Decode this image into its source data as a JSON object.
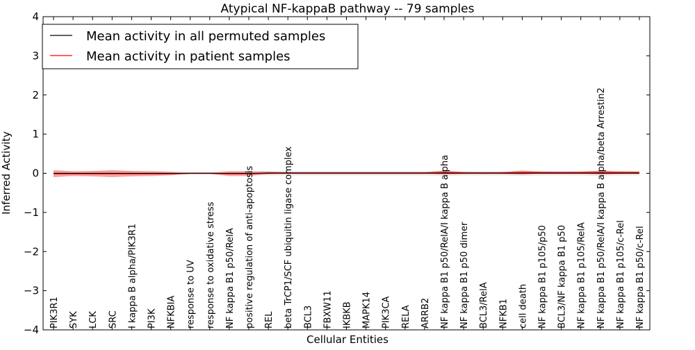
{
  "chart_data": {
    "type": "line",
    "title": "Atypical NF-kappaB pathway -- 79 samples",
    "xlabel": "Cellular Entities",
    "ylabel": "Inferred Activity",
    "ylim": [
      -4,
      4
    ],
    "yticks": [
      -4,
      -3,
      -2,
      -1,
      0,
      1,
      2,
      3,
      4
    ],
    "ytick_labels": [
      "−4",
      "−3",
      "−2",
      "−1",
      "0",
      "1",
      "2",
      "3",
      "4"
    ],
    "grid": false,
    "legend_position": "top-left",
    "categories": [
      "PIK3R1",
      "SYK",
      "LCK",
      "SRC",
      "I kappa B alpha/PIK3R1",
      "PI3K",
      "NFKBIA",
      "response to UV",
      "response to oxidative stress",
      "NF kappa B1 p50/RelA",
      "positive regulation of anti-apoptosis",
      "REL",
      "beta TrCP1/SCF ubiquitin ligase complex",
      "BCL3",
      "FBXW11",
      "IKBKB",
      "MAPK14",
      "PIK3CA",
      "RELA",
      "ARRB2",
      "NF kappa B1 p50/RelA/I kappa B alpha",
      "NF kappa B1 p50 dimer",
      "BCL3/RelA",
      "NFKB1",
      "cell death",
      "NF kappa B1 p105/p50",
      "BCL3/NF kappa B1 p50",
      "NF kappa B1 p105/RelA",
      "NF kappa B1 p50/RelA/I kappa B alpha/beta Arrestin2",
      "NF kappa B1 p105/c-Rel",
      "NF kappa B1 p50/c-Rel"
    ],
    "series": [
      {
        "name": "Mean activity in all permuted samples",
        "color": "#000000",
        "band_color": "#c8c8c8",
        "values": [
          0,
          0,
          0,
          0,
          0,
          0,
          0,
          0,
          0,
          0,
          0,
          0,
          0,
          0,
          0,
          0,
          0,
          0,
          0,
          0,
          0,
          0,
          0,
          0,
          0,
          0,
          0,
          0,
          0,
          0,
          0
        ],
        "band": [
          0.05,
          0.05,
          0.05,
          0.05,
          0.05,
          0.05,
          0.05,
          0.03,
          0.03,
          0.05,
          0.05,
          0.05,
          0.05,
          0.05,
          0.05,
          0.05,
          0.05,
          0.05,
          0.05,
          0.05,
          0.06,
          0.05,
          0.05,
          0.05,
          0.06,
          0.05,
          0.05,
          0.05,
          0.06,
          0.05,
          0.05
        ]
      },
      {
        "name": "Mean activity in patient samples",
        "color": "#ff0000",
        "band_color": "#f08080",
        "values": [
          -0.01,
          -0.01,
          -0.01,
          -0.01,
          -0.01,
          -0.01,
          -0.01,
          0,
          0,
          -0.01,
          -0.01,
          0.01,
          0.01,
          0.01,
          0.01,
          0.01,
          0.01,
          0.01,
          0.01,
          0.01,
          0.02,
          0.01,
          0.01,
          0.01,
          0.02,
          0.02,
          0.02,
          0.02,
          0.02,
          0.02,
          0.02
        ],
        "band": [
          0.09,
          0.06,
          0.07,
          0.09,
          0.07,
          0.06,
          0.04,
          0.01,
          0.01,
          0.06,
          0.06,
          0.03,
          0.01,
          0.01,
          0.01,
          0.01,
          0.01,
          0.01,
          0.01,
          0.01,
          0.05,
          0.02,
          0.01,
          0.02,
          0.05,
          0.02,
          0.01,
          0.02,
          0.05,
          0.03,
          0.02
        ]
      }
    ]
  }
}
